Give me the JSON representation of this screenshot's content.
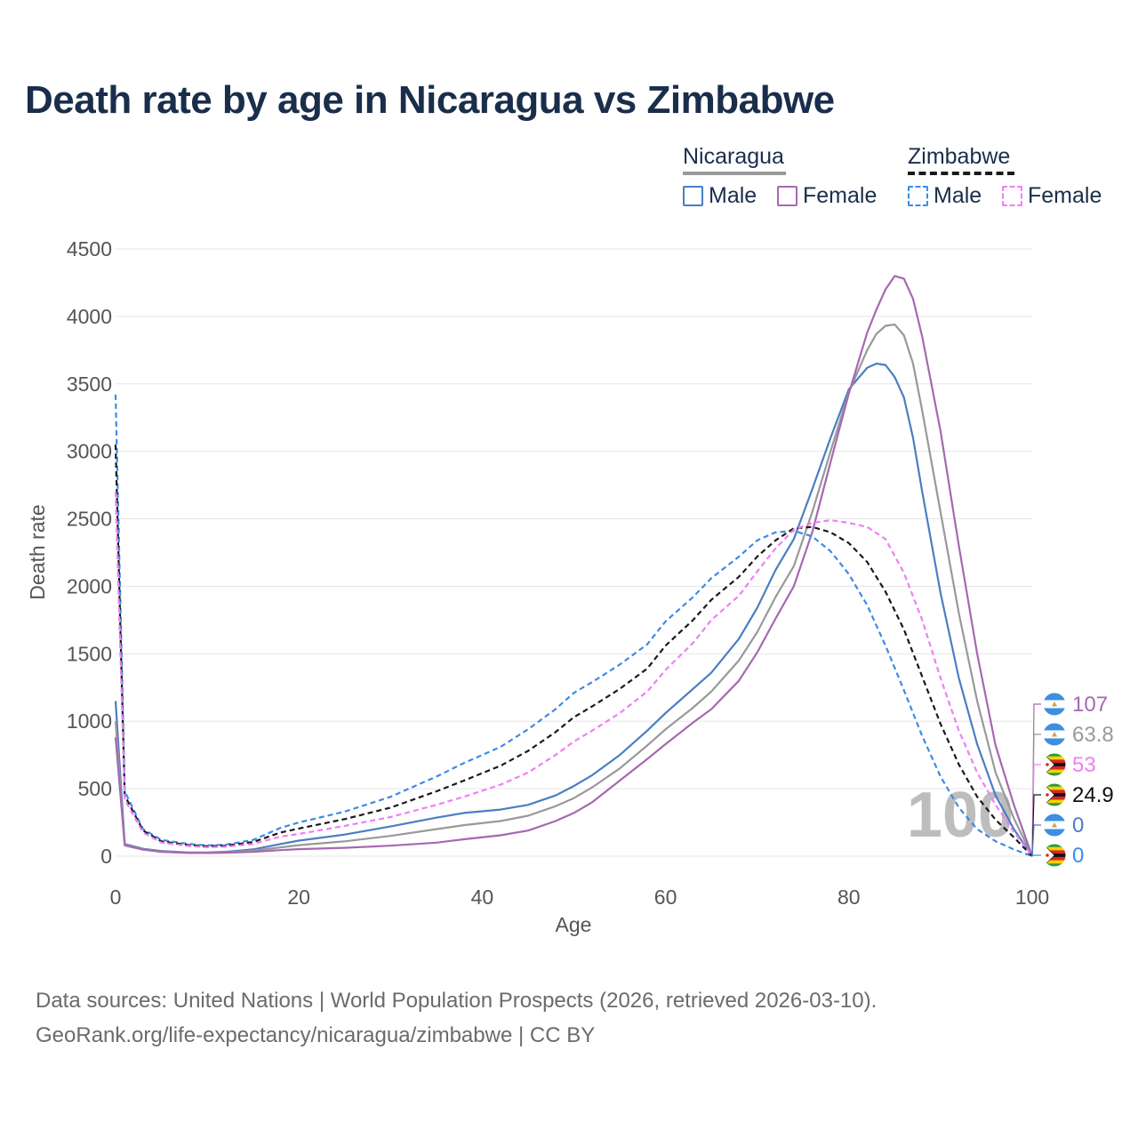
{
  "chart_data": {
    "type": "line",
    "title": "Death rate by age in Nicaragua vs Zimbabwe",
    "xlabel": "Age",
    "ylabel": "Death rate",
    "xlim": [
      0,
      100
    ],
    "ylim": [
      0,
      4500
    ],
    "xticks": [
      0,
      20,
      40,
      60,
      80,
      100
    ],
    "yticks": [
      0,
      500,
      1000,
      1500,
      2000,
      2500,
      3000,
      3500,
      4000,
      4500
    ],
    "grid": true,
    "legend_position": "top-right",
    "watermark": "100",
    "legend_groups": [
      {
        "label": "Nicaragua",
        "items": [
          {
            "label": "Male"
          },
          {
            "label": "Female"
          }
        ]
      },
      {
        "label": "Zimbabwe",
        "items": [
          {
            "label": "Male"
          },
          {
            "label": "Female"
          }
        ]
      }
    ],
    "series": [
      {
        "name": "Nicaragua Male",
        "color": "#4a7ec2",
        "dash": false,
        "end_label": "0",
        "flag": "nicaragua",
        "points": [
          [
            0,
            1150
          ],
          [
            1,
            90
          ],
          [
            3,
            55
          ],
          [
            5,
            38
          ],
          [
            8,
            28
          ],
          [
            10,
            28
          ],
          [
            12,
            32
          ],
          [
            15,
            50
          ],
          [
            18,
            90
          ],
          [
            20,
            115
          ],
          [
            25,
            160
          ],
          [
            30,
            220
          ],
          [
            35,
            285
          ],
          [
            38,
            320
          ],
          [
            42,
            345
          ],
          [
            45,
            380
          ],
          [
            48,
            450
          ],
          [
            50,
            520
          ],
          [
            52,
            600
          ],
          [
            55,
            750
          ],
          [
            58,
            930
          ],
          [
            60,
            1060
          ],
          [
            63,
            1240
          ],
          [
            65,
            1360
          ],
          [
            68,
            1610
          ],
          [
            70,
            1840
          ],
          [
            72,
            2120
          ],
          [
            74,
            2350
          ],
          [
            76,
            2720
          ],
          [
            78,
            3100
          ],
          [
            80,
            3460
          ],
          [
            82,
            3620
          ],
          [
            83,
            3650
          ],
          [
            84,
            3640
          ],
          [
            85,
            3550
          ],
          [
            86,
            3400
          ],
          [
            87,
            3100
          ],
          [
            88,
            2700
          ],
          [
            90,
            1950
          ],
          [
            92,
            1320
          ],
          [
            94,
            830
          ],
          [
            96,
            450
          ],
          [
            98,
            200
          ],
          [
            100,
            0
          ]
        ]
      },
      {
        "name": "Nicaragua Total",
        "color": "#999999",
        "dash": false,
        "end_label": "63.8",
        "flag": "nicaragua",
        "points": [
          [
            0,
            1000
          ],
          [
            1,
            85
          ],
          [
            3,
            50
          ],
          [
            5,
            35
          ],
          [
            8,
            26
          ],
          [
            10,
            26
          ],
          [
            12,
            28
          ],
          [
            15,
            40
          ],
          [
            18,
            65
          ],
          [
            20,
            82
          ],
          [
            25,
            110
          ],
          [
            30,
            150
          ],
          [
            35,
            200
          ],
          [
            38,
            230
          ],
          [
            42,
            260
          ],
          [
            45,
            300
          ],
          [
            48,
            370
          ],
          [
            50,
            430
          ],
          [
            52,
            510
          ],
          [
            55,
            650
          ],
          [
            58,
            820
          ],
          [
            60,
            940
          ],
          [
            63,
            1100
          ],
          [
            65,
            1220
          ],
          [
            68,
            1450
          ],
          [
            70,
            1660
          ],
          [
            72,
            1920
          ],
          [
            74,
            2150
          ],
          [
            76,
            2550
          ],
          [
            78,
            3000
          ],
          [
            80,
            3440
          ],
          [
            82,
            3750
          ],
          [
            83,
            3870
          ],
          [
            84,
            3930
          ],
          [
            85,
            3940
          ],
          [
            86,
            3860
          ],
          [
            87,
            3650
          ],
          [
            88,
            3300
          ],
          [
            90,
            2550
          ],
          [
            92,
            1800
          ],
          [
            94,
            1150
          ],
          [
            96,
            620
          ],
          [
            98,
            280
          ],
          [
            100,
            0
          ]
        ]
      },
      {
        "name": "Nicaragua Female",
        "color": "#a569b0",
        "dash": false,
        "end_label": "107",
        "flag": "nicaragua",
        "points": [
          [
            0,
            880
          ],
          [
            1,
            80
          ],
          [
            3,
            48
          ],
          [
            5,
            32
          ],
          [
            8,
            24
          ],
          [
            10,
            24
          ],
          [
            12,
            26
          ],
          [
            15,
            32
          ],
          [
            18,
            45
          ],
          [
            20,
            52
          ],
          [
            25,
            62
          ],
          [
            30,
            78
          ],
          [
            35,
            100
          ],
          [
            38,
            125
          ],
          [
            42,
            155
          ],
          [
            45,
            190
          ],
          [
            48,
            260
          ],
          [
            50,
            320
          ],
          [
            52,
            400
          ],
          [
            55,
            560
          ],
          [
            58,
            720
          ],
          [
            60,
            830
          ],
          [
            63,
            990
          ],
          [
            65,
            1090
          ],
          [
            68,
            1300
          ],
          [
            70,
            1510
          ],
          [
            72,
            1760
          ],
          [
            74,
            2000
          ],
          [
            76,
            2400
          ],
          [
            78,
            2920
          ],
          [
            80,
            3430
          ],
          [
            82,
            3880
          ],
          [
            83,
            4050
          ],
          [
            84,
            4200
          ],
          [
            85,
            4300
          ],
          [
            86,
            4280
          ],
          [
            87,
            4130
          ],
          [
            88,
            3850
          ],
          [
            90,
            3150
          ],
          [
            92,
            2300
          ],
          [
            94,
            1500
          ],
          [
            96,
            820
          ],
          [
            98,
            380
          ],
          [
            100,
            0
          ]
        ]
      },
      {
        "name": "Zimbabwe Male",
        "color": "#3b8be8",
        "dash": true,
        "end_label": "0",
        "flag": "zimbabwe",
        "points": [
          [
            0,
            3420
          ],
          [
            1,
            480
          ],
          [
            3,
            200
          ],
          [
            5,
            120
          ],
          [
            8,
            90
          ],
          [
            10,
            80
          ],
          [
            12,
            85
          ],
          [
            15,
            120
          ],
          [
            18,
            210
          ],
          [
            20,
            250
          ],
          [
            25,
            330
          ],
          [
            30,
            440
          ],
          [
            35,
            590
          ],
          [
            38,
            690
          ],
          [
            42,
            810
          ],
          [
            45,
            940
          ],
          [
            48,
            1090
          ],
          [
            50,
            1210
          ],
          [
            52,
            1290
          ],
          [
            55,
            1420
          ],
          [
            58,
            1570
          ],
          [
            60,
            1740
          ],
          [
            63,
            1920
          ],
          [
            65,
            2060
          ],
          [
            68,
            2220
          ],
          [
            70,
            2340
          ],
          [
            72,
            2400
          ],
          [
            74,
            2410
          ],
          [
            76,
            2370
          ],
          [
            78,
            2260
          ],
          [
            80,
            2090
          ],
          [
            82,
            1860
          ],
          [
            84,
            1560
          ],
          [
            86,
            1230
          ],
          [
            88,
            890
          ],
          [
            90,
            590
          ],
          [
            92,
            360
          ],
          [
            94,
            200
          ],
          [
            96,
            110
          ],
          [
            98,
            50
          ],
          [
            100,
            0
          ]
        ]
      },
      {
        "name": "Zimbabwe Total",
        "color": "#1a1a1a",
        "dash": true,
        "end_label": "24.9",
        "flag": "zimbabwe",
        "points": [
          [
            0,
            3050
          ],
          [
            1,
            450
          ],
          [
            3,
            190
          ],
          [
            5,
            110
          ],
          [
            8,
            82
          ],
          [
            10,
            73
          ],
          [
            12,
            78
          ],
          [
            15,
            105
          ],
          [
            18,
            175
          ],
          [
            20,
            205
          ],
          [
            25,
            275
          ],
          [
            30,
            360
          ],
          [
            35,
            480
          ],
          [
            38,
            560
          ],
          [
            42,
            670
          ],
          [
            45,
            780
          ],
          [
            48,
            920
          ],
          [
            50,
            1030
          ],
          [
            52,
            1110
          ],
          [
            55,
            1240
          ],
          [
            58,
            1390
          ],
          [
            60,
            1560
          ],
          [
            63,
            1750
          ],
          [
            65,
            1900
          ],
          [
            68,
            2070
          ],
          [
            70,
            2220
          ],
          [
            72,
            2340
          ],
          [
            74,
            2430
          ],
          [
            76,
            2440
          ],
          [
            78,
            2400
          ],
          [
            80,
            2320
          ],
          [
            82,
            2180
          ],
          [
            84,
            1960
          ],
          [
            86,
            1680
          ],
          [
            88,
            1330
          ],
          [
            90,
            980
          ],
          [
            92,
            680
          ],
          [
            94,
            440
          ],
          [
            96,
            270
          ],
          [
            98,
            140
          ],
          [
            100,
            0
          ]
        ]
      },
      {
        "name": "Zimbabwe Female",
        "color": "#f07ef5",
        "dash": true,
        "end_label": "53",
        "flag": "zimbabwe",
        "points": [
          [
            0,
            2700
          ],
          [
            1,
            420
          ],
          [
            3,
            175
          ],
          [
            5,
            100
          ],
          [
            8,
            75
          ],
          [
            10,
            66
          ],
          [
            12,
            70
          ],
          [
            15,
            90
          ],
          [
            18,
            145
          ],
          [
            20,
            165
          ],
          [
            25,
            225
          ],
          [
            30,
            290
          ],
          [
            35,
            380
          ],
          [
            38,
            440
          ],
          [
            42,
            530
          ],
          [
            45,
            620
          ],
          [
            48,
            750
          ],
          [
            50,
            850
          ],
          [
            52,
            930
          ],
          [
            55,
            1060
          ],
          [
            58,
            1220
          ],
          [
            60,
            1380
          ],
          [
            63,
            1580
          ],
          [
            65,
            1750
          ],
          [
            68,
            1930
          ],
          [
            70,
            2110
          ],
          [
            72,
            2280
          ],
          [
            74,
            2420
          ],
          [
            76,
            2470
          ],
          [
            78,
            2490
          ],
          [
            80,
            2470
          ],
          [
            82,
            2440
          ],
          [
            84,
            2350
          ],
          [
            86,
            2100
          ],
          [
            88,
            1750
          ],
          [
            90,
            1320
          ],
          [
            92,
            930
          ],
          [
            94,
            620
          ],
          [
            96,
            380
          ],
          [
            98,
            180
          ],
          [
            100,
            0
          ]
        ]
      }
    ]
  },
  "footer": {
    "line1": "Data sources: United Nations | World Population Prospects (2026, retrieved 2026-03-10).",
    "line2": "GeoRank.org/life-expectancy/nicaragua/zimbabwe | CC BY"
  }
}
